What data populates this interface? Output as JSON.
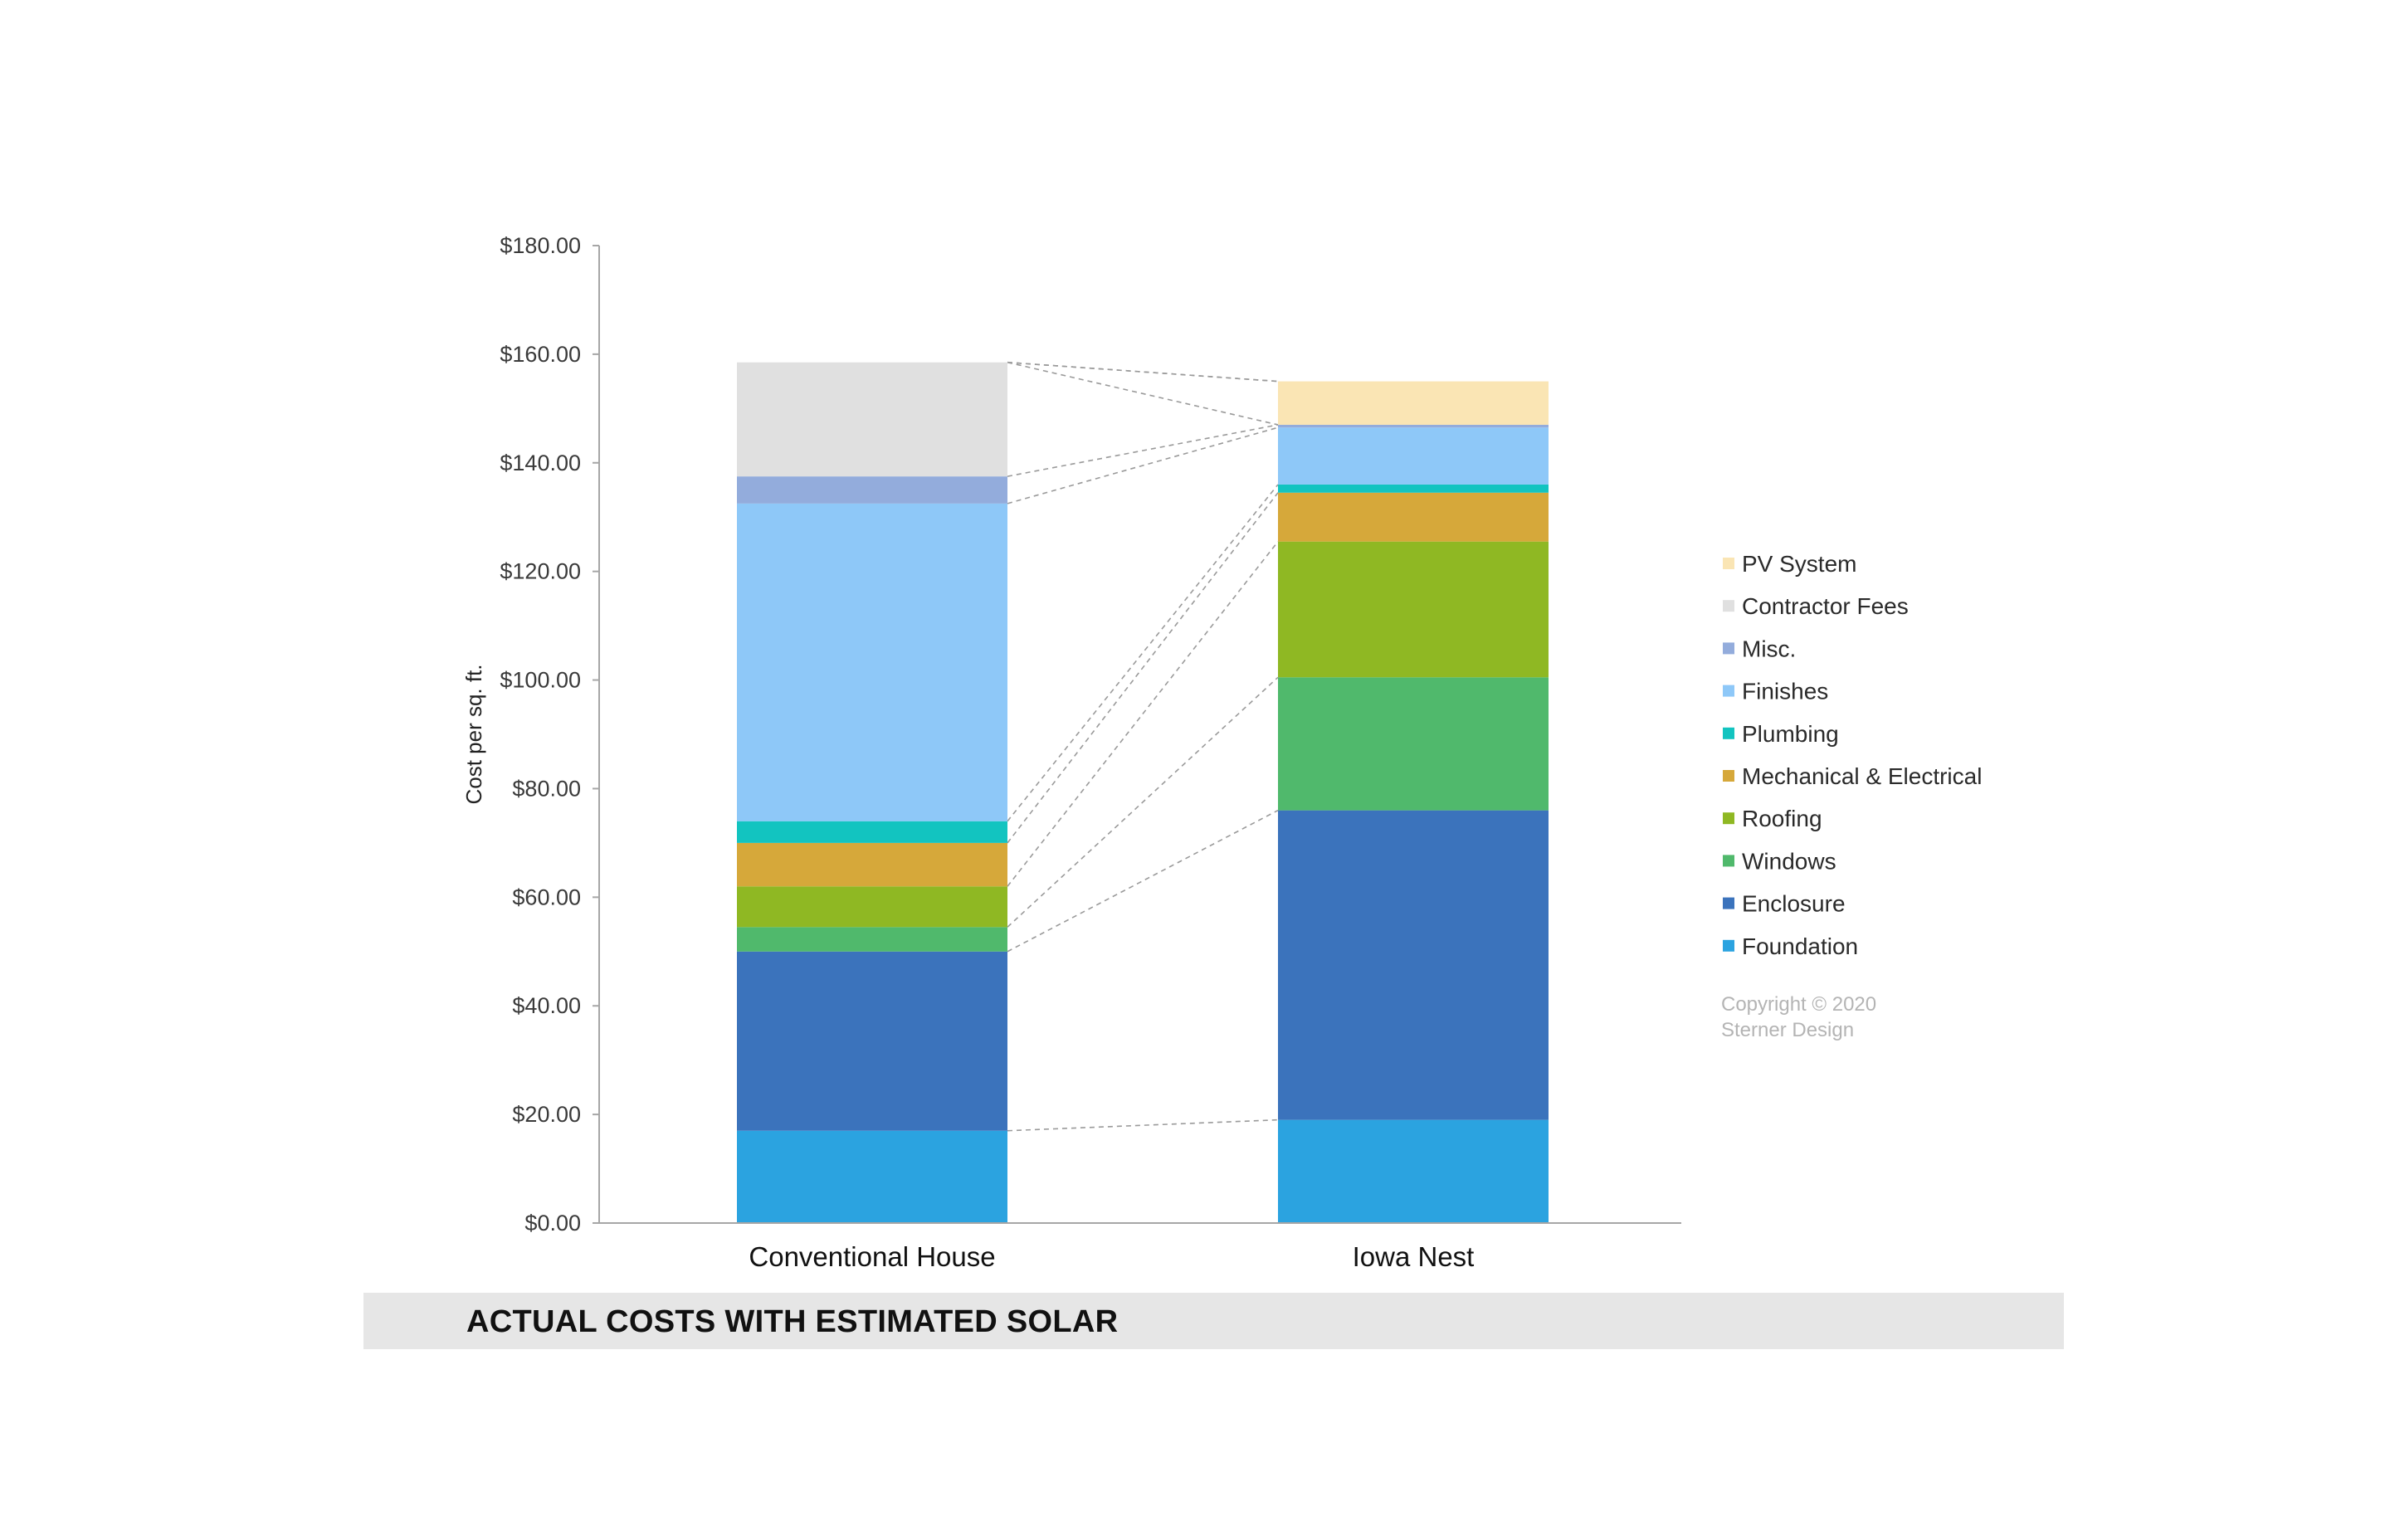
{
  "chart_data": {
    "type": "bar",
    "stacked": true,
    "title": "",
    "caption": "ACTUAL COSTS WITH ESTIMATED SOLAR",
    "ylabel": "Cost per sq. ft.",
    "xlabel": "",
    "ylim": [
      0,
      180
    ],
    "yticks": [
      "$0.00",
      "$20.00",
      "$40.00",
      "$60.00",
      "$80.00",
      "$100.00",
      "$120.00",
      "$140.00",
      "$160.00",
      "$180.00"
    ],
    "categories": [
      "Conventional House",
      "Iowa Nest"
    ],
    "series": [
      {
        "name": "Foundation",
        "color": "#2ba3e0",
        "values": [
          17,
          19
        ]
      },
      {
        "name": "Enclosure",
        "color": "#3b73bc",
        "values": [
          33,
          57
        ]
      },
      {
        "name": "Windows",
        "color": "#50b96c",
        "values": [
          4.5,
          24.5
        ]
      },
      {
        "name": "Roofing",
        "color": "#8fb823",
        "values": [
          7.5,
          25
        ]
      },
      {
        "name": "Mechanical & Electrical",
        "color": "#d6a83a",
        "values": [
          8,
          9
        ]
      },
      {
        "name": "Plumbing",
        "color": "#12c4c0",
        "values": [
          4,
          1.5
        ]
      },
      {
        "name": "Finishes",
        "color": "#8ec8f8",
        "values": [
          58.5,
          10.5
        ]
      },
      {
        "name": "Misc.",
        "color": "#93acdc",
        "values": [
          5,
          0.5
        ]
      },
      {
        "name": "Contractor Fees",
        "color": "#e0e0e0",
        "values": [
          21,
          0
        ]
      },
      {
        "name": "PV System",
        "color": "#fae5b4",
        "values": [
          0,
          8
        ]
      }
    ],
    "legend_position": "right",
    "legend_order": [
      "PV System",
      "Contractor Fees",
      "Misc.",
      "Finishes",
      "Plumbing",
      "Mechanical & Electrical",
      "Roofing",
      "Windows",
      "Enclosure",
      "Foundation"
    ],
    "grid": false,
    "connector_lines": true
  },
  "copyright": [
    "Copyright © 2020",
    "Sterner Design"
  ]
}
